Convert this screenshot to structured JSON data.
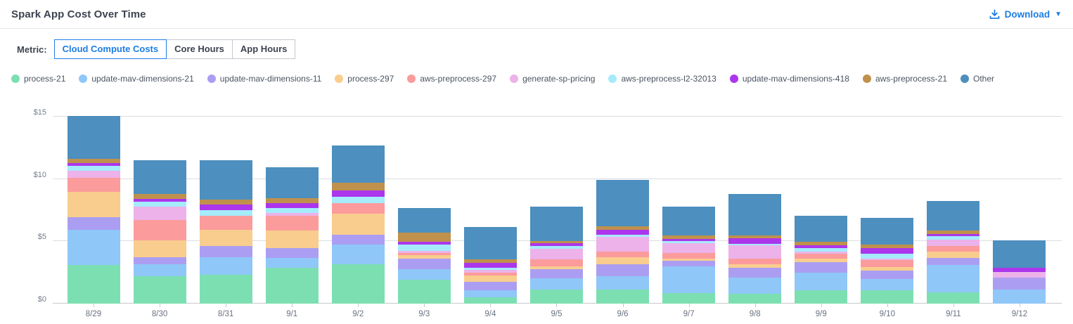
{
  "header": {
    "title": "Spark App Cost Over Time",
    "download_label": "Download"
  },
  "metric": {
    "label": "Metric:",
    "options": [
      {
        "label": "Cloud Compute Costs",
        "selected": true
      },
      {
        "label": "Core Hours",
        "selected": false
      },
      {
        "label": "App Hours",
        "selected": false
      }
    ]
  },
  "colors": {
    "accent_blue": "#1d7de3",
    "gridline": "#dadde0",
    "axis_line": "#c6cacf",
    "axis_text": "#757d8a"
  },
  "chart_data": {
    "type": "bar",
    "stacked": true,
    "grid": true,
    "legend_position": "top",
    "ytick_prefix": "$",
    "yticks": [
      0,
      5,
      10,
      15
    ],
    "ylim": [
      0,
      15
    ],
    "categories": [
      "8/29",
      "8/30",
      "8/31",
      "9/1",
      "9/2",
      "9/3",
      "9/4",
      "9/5",
      "9/6",
      "9/7",
      "9/8",
      "9/9",
      "9/10",
      "9/11",
      "9/12"
    ],
    "series": [
      {
        "name": "process-21",
        "color": "#7CDFB2",
        "values": [
          3.1,
          2.2,
          2.3,
          2.9,
          3.15,
          1.9,
          0.5,
          1.15,
          1.15,
          0.85,
          0.8,
          1.05,
          1.05,
          0.9,
          0
        ]
      },
      {
        "name": "update-mav-dimensions-21",
        "color": "#8FC7F8",
        "values": [
          2.8,
          0.95,
          1.45,
          0.75,
          1.6,
          0.85,
          0.55,
          0.9,
          1.05,
          2.15,
          1.3,
          1.45,
          0.95,
          2.2,
          1.15
        ]
      },
      {
        "name": "update-mav-dimensions-11",
        "color": "#AB9EF2",
        "values": [
          1.05,
          0.6,
          0.9,
          0.8,
          0.8,
          0.85,
          0.7,
          0.7,
          0.95,
          0.45,
          0.8,
          0.85,
          0.65,
          0.55,
          0.95
        ]
      },
      {
        "name": "process-297",
        "color": "#F8CD8E",
        "values": [
          2.0,
          1.35,
          1.25,
          1.4,
          1.65,
          0.3,
          0.5,
          0.25,
          0.55,
          0.15,
          0.25,
          0.25,
          0.27,
          0.5,
          0
        ]
      },
      {
        "name": "aws-preprocess-297",
        "color": "#FB9B9B",
        "values": [
          1.15,
          1.6,
          1.15,
          1.2,
          0.85,
          0.15,
          0.25,
          0.55,
          0.45,
          0.45,
          0.45,
          0.4,
          0.58,
          0.5,
          0
        ]
      },
      {
        "name": "generate-sp-pricing",
        "color": "#ECB2E9",
        "values": [
          0.55,
          1.1,
          0,
          0.25,
          0,
          0.2,
          0.2,
          0.85,
          1.2,
          0.8,
          1.1,
          0.15,
          0.1,
          0.5,
          0.45
        ]
      },
      {
        "name": "aws-preprocess-l2-32013",
        "color": "#A5EBFB",
        "values": [
          0.4,
          0.4,
          0.45,
          0.35,
          0.55,
          0.5,
          0.2,
          0.25,
          0.2,
          0.2,
          0.1,
          0.3,
          0.38,
          0.25,
          0
        ]
      },
      {
        "name": "update-mav-dimensions-418",
        "color": "#AC36EC",
        "values": [
          0.25,
          0.2,
          0.45,
          0.4,
          0.5,
          0.2,
          0.4,
          0.2,
          0.4,
          0.15,
          0.45,
          0.25,
          0.48,
          0.2,
          0.35
        ]
      },
      {
        "name": "aws-preprocess-21",
        "color": "#C0914C",
        "values": [
          0.3,
          0.4,
          0.4,
          0.4,
          0.6,
          0.75,
          0.25,
          0.2,
          0.25,
          0.25,
          0.2,
          0.25,
          0.27,
          0.25,
          0
        ]
      },
      {
        "name": "Other",
        "color": "#4D8FBE",
        "values": [
          3.45,
          2.7,
          3.15,
          2.5,
          3.0,
          2.0,
          2.6,
          2.75,
          3.75,
          2.35,
          3.35,
          2.1,
          2.15,
          2.4,
          2.15
        ]
      }
    ]
  }
}
